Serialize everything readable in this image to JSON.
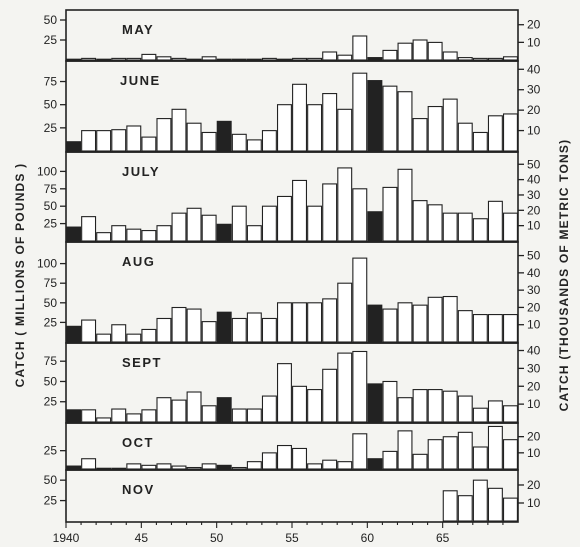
{
  "colors": {
    "background": "#f4f4f1",
    "ink": "#222222",
    "open_bar_fill": "#ffffff",
    "war_bar_fill": "#222222"
  },
  "chart_data": {
    "type": "bar",
    "ylabel_left": "CATCH ( MILLIONS OF POUNDS )",
    "ylabel_right": "CATCH (THOUSANDS OF METRIC TONS)",
    "xlim": [
      1940,
      1969
    ],
    "x_ticks": [
      {
        "value": 1940,
        "label": "1940"
      },
      {
        "value": 1945,
        "label": "45"
      },
      {
        "value": 1950,
        "label": "50"
      },
      {
        "value": 1955,
        "label": "55"
      },
      {
        "value": 1960,
        "label": "60"
      },
      {
        "value": 1965,
        "label": "65"
      }
    ],
    "solid_bar_years": [
      1940,
      1950,
      1960
    ],
    "x": [
      1940,
      1941,
      1942,
      1943,
      1944,
      1945,
      1946,
      1947,
      1948,
      1949,
      1950,
      1951,
      1952,
      1953,
      1954,
      1955,
      1956,
      1957,
      1958,
      1959,
      1960,
      1961,
      1962,
      1963,
      1964,
      1965,
      1966,
      1967,
      1968,
      1969
    ],
    "panels": [
      {
        "month": "MAY",
        "ylim": [
          0,
          60
        ],
        "left_ticks": [
          {
            "value": 25,
            "label": "25"
          },
          {
            "value": 50,
            "label": "50"
          }
        ],
        "right_ticks": [
          {
            "value": 22.05,
            "label": "10"
          },
          {
            "value": 44.1,
            "label": "20"
          }
        ],
        "values": [
          1,
          2,
          1,
          2,
          2,
          7,
          4,
          2,
          1,
          4,
          1,
          1,
          1,
          2,
          1,
          2,
          2,
          10,
          6,
          30,
          3,
          12,
          21,
          25,
          22,
          10,
          3,
          2,
          2,
          4
        ]
      },
      {
        "month": "JUNE",
        "ylim": [
          0,
          95
        ],
        "left_ticks": [
          {
            "value": 25,
            "label": "25"
          },
          {
            "value": 50,
            "label": "50"
          },
          {
            "value": 75,
            "label": "75"
          }
        ],
        "right_ticks": [
          {
            "value": 22.05,
            "label": "10"
          },
          {
            "value": 44.1,
            "label": "20"
          },
          {
            "value": 66.15,
            "label": "30"
          },
          {
            "value": 88.2,
            "label": "40"
          }
        ],
        "values": [
          10,
          22,
          22,
          23,
          27,
          15,
          35,
          45,
          30,
          20,
          32,
          18,
          12,
          22,
          50,
          72,
          50,
          62,
          45,
          84,
          76,
          70,
          64,
          35,
          48,
          56,
          30,
          20,
          38,
          40
        ]
      },
      {
        "month": "JULY",
        "ylim": [
          0,
          125
        ],
        "left_ticks": [
          {
            "value": 25,
            "label": "25"
          },
          {
            "value": 50,
            "label": "50"
          },
          {
            "value": 75,
            "label": "75"
          },
          {
            "value": 100,
            "label": "100"
          }
        ],
        "right_ticks": [
          {
            "value": 22.05,
            "label": "10"
          },
          {
            "value": 44.1,
            "label": "20"
          },
          {
            "value": 66.15,
            "label": "30"
          },
          {
            "value": 88.2,
            "label": "40"
          },
          {
            "value": 110.25,
            "label": "50"
          }
        ],
        "values": [
          20,
          35,
          12,
          22,
          17,
          15,
          22,
          40,
          47,
          37,
          24,
          50,
          22,
          50,
          64,
          87,
          50,
          82,
          105,
          75,
          42,
          77,
          103,
          58,
          52,
          40,
          40,
          32,
          57,
          40
        ]
      },
      {
        "month": "AUG",
        "ylim": [
          0,
          125
        ],
        "left_ticks": [
          {
            "value": 25,
            "label": "25"
          },
          {
            "value": 50,
            "label": "50"
          },
          {
            "value": 75,
            "label": "75"
          },
          {
            "value": 100,
            "label": "100"
          }
        ],
        "right_ticks": [
          {
            "value": 22.05,
            "label": "10"
          },
          {
            "value": 44.1,
            "label": "20"
          },
          {
            "value": 66.15,
            "label": "30"
          },
          {
            "value": 88.2,
            "label": "40"
          },
          {
            "value": 110.25,
            "label": "50"
          }
        ],
        "values": [
          20,
          28,
          10,
          22,
          10,
          16,
          30,
          44,
          42,
          26,
          38,
          30,
          37,
          30,
          50,
          50,
          50,
          55,
          75,
          107,
          47,
          42,
          50,
          47,
          57,
          58,
          40,
          35,
          35,
          35
        ]
      },
      {
        "month": "SEPT",
        "ylim": [
          0,
          95
        ],
        "left_ticks": [
          {
            "value": 25,
            "label": "25"
          },
          {
            "value": 50,
            "label": "50"
          },
          {
            "value": 75,
            "label": "75"
          }
        ],
        "right_ticks": [
          {
            "value": 22.05,
            "label": "10"
          },
          {
            "value": 44.1,
            "label": "20"
          },
          {
            "value": 66.15,
            "label": "30"
          },
          {
            "value": 88.2,
            "label": "40"
          }
        ],
        "values": [
          15,
          15,
          5,
          16,
          10,
          15,
          30,
          27,
          37,
          20,
          30,
          16,
          16,
          32,
          72,
          44,
          40,
          65,
          85,
          87,
          47,
          50,
          30,
          40,
          40,
          38,
          32,
          17,
          26,
          20
        ]
      },
      {
        "month": "OCT",
        "ylim": [
          0,
          60
        ],
        "left_ticks": [
          {
            "value": 25,
            "label": "25"
          }
        ],
        "right_ticks": [
          {
            "value": 22.05,
            "label": "10"
          },
          {
            "value": 44.1,
            "label": "20"
          }
        ],
        "values": [
          4,
          14,
          1,
          1,
          7,
          5,
          7,
          4,
          2,
          7,
          5,
          2,
          10,
          22,
          32,
          28,
          7,
          12,
          10,
          48,
          14,
          24,
          52,
          20,
          40,
          44,
          50,
          30,
          58,
          40
        ]
      },
      {
        "month": "NOV",
        "ylim": [
          0,
          60
        ],
        "left_ticks": [
          {
            "value": 25,
            "label": "25"
          },
          {
            "value": 50,
            "label": "50"
          }
        ],
        "right_ticks": [
          {
            "value": 22.05,
            "label": "10"
          },
          {
            "value": 44.1,
            "label": "20"
          }
        ],
        "values": [
          0,
          0,
          0,
          0,
          0,
          0,
          0,
          0,
          0,
          0,
          0,
          0,
          0,
          0,
          0,
          0,
          0,
          0,
          0,
          0,
          0,
          0,
          0,
          0,
          0,
          37,
          31,
          50,
          40,
          28
        ]
      }
    ]
  }
}
